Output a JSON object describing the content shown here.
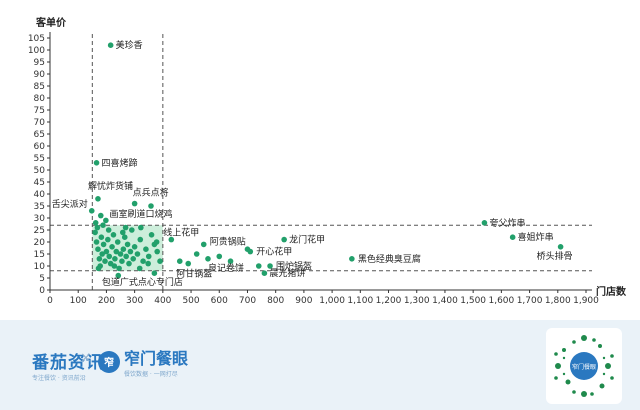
{
  "chart_data": {
    "type": "scatter",
    "xlabel": "门店数",
    "ylabel": "客单价",
    "xlim": [
      0,
      1900
    ],
    "ylim": [
      0,
      105
    ],
    "xticks": [
      0,
      100,
      200,
      300,
      400,
      500,
      600,
      700,
      800,
      900,
      1000,
      1100,
      1200,
      1300,
      1400,
      1500,
      1600,
      1700,
      1800,
      1900
    ],
    "yticks": [
      0,
      5,
      10,
      15,
      20,
      25,
      30,
      35,
      40,
      45,
      50,
      55,
      60,
      65,
      70,
      75,
      80,
      85,
      90,
      95,
      100,
      105
    ],
    "tick_labels_x": [
      "0",
      "100",
      "200",
      "300",
      "400",
      "500",
      "600",
      "700",
      "800",
      "900",
      "1,000",
      "1,100",
      "1,200",
      "1,300",
      "1,400",
      "1,500",
      "1,600",
      "1,700",
      "1,800",
      "1,900"
    ],
    "ref_lines": {
      "vertical": [
        150,
        400
      ],
      "horizontal": [
        27,
        8
      ]
    },
    "highlight_box": {
      "x": [
        150,
        400
      ],
      "y": [
        8,
        27
      ]
    },
    "colors": {
      "point": "#22a06b",
      "box": "#c4ebd5",
      "ref": "#555555"
    },
    "labeled_points": [
      {
        "x": 215,
        "y": 102,
        "label": "美珍香"
      },
      {
        "x": 165,
        "y": 53,
        "label": "四喜烤蹄"
      },
      {
        "x": 170,
        "y": 38,
        "label": "解忧炸货铺"
      },
      {
        "x": 148,
        "y": 33,
        "label": "舌尖派对"
      },
      {
        "x": 300,
        "y": 36,
        "label": "点兵点将"
      },
      {
        "x": 358,
        "y": 35,
        "label": "画室刷道口烧鸡"
      },
      {
        "x": 430,
        "y": 21,
        "label": "线上花甲"
      },
      {
        "x": 545,
        "y": 19,
        "label": "阿贵锅贴"
      },
      {
        "x": 490,
        "y": 11,
        "label": "阿甘锅盔"
      },
      {
        "x": 560,
        "y": 13,
        "label": "良记卷饼"
      },
      {
        "x": 370,
        "y": 7,
        "label": "包道广式点心专门店"
      },
      {
        "x": 710,
        "y": 16,
        "label": "开心花甲"
      },
      {
        "x": 830,
        "y": 21,
        "label": "龙门花甲"
      },
      {
        "x": 780,
        "y": 10,
        "label": "围炉锅盔"
      },
      {
        "x": 760,
        "y": 7,
        "label": "晨光猪饼"
      },
      {
        "x": 1070,
        "y": 13,
        "label": "黑色经典臭豆腐"
      },
      {
        "x": 1540,
        "y": 28,
        "label": "夸父炸串"
      },
      {
        "x": 1640,
        "y": 22,
        "label": "喜姐炸串"
      },
      {
        "x": 1810,
        "y": 18,
        "label": "桥头排骨"
      }
    ],
    "points": [
      {
        "x": 160,
        "y": 24
      },
      {
        "x": 165,
        "y": 20
      },
      {
        "x": 170,
        "y": 17
      },
      {
        "x": 175,
        "y": 13
      },
      {
        "x": 178,
        "y": 10
      },
      {
        "x": 182,
        "y": 22
      },
      {
        "x": 185,
        "y": 15
      },
      {
        "x": 190,
        "y": 19
      },
      {
        "x": 195,
        "y": 12
      },
      {
        "x": 200,
        "y": 16
      },
      {
        "x": 205,
        "y": 21
      },
      {
        "x": 210,
        "y": 14
      },
      {
        "x": 215,
        "y": 11
      },
      {
        "x": 220,
        "y": 18
      },
      {
        "x": 225,
        "y": 23
      },
      {
        "x": 230,
        "y": 13
      },
      {
        "x": 235,
        "y": 16
      },
      {
        "x": 240,
        "y": 20
      },
      {
        "x": 245,
        "y": 9
      },
      {
        "x": 250,
        "y": 15
      },
      {
        "x": 255,
        "y": 12
      },
      {
        "x": 260,
        "y": 17
      },
      {
        "x": 265,
        "y": 22
      },
      {
        "x": 270,
        "y": 14
      },
      {
        "x": 275,
        "y": 19
      },
      {
        "x": 280,
        "y": 11
      },
      {
        "x": 285,
        "y": 16
      },
      {
        "x": 290,
        "y": 25
      },
      {
        "x": 295,
        "y": 13
      },
      {
        "x": 300,
        "y": 18
      },
      {
        "x": 310,
        "y": 15
      },
      {
        "x": 320,
        "y": 21
      },
      {
        "x": 330,
        "y": 12
      },
      {
        "x": 340,
        "y": 17
      },
      {
        "x": 350,
        "y": 14
      },
      {
        "x": 360,
        "y": 23
      },
      {
        "x": 370,
        "y": 19
      },
      {
        "x": 380,
        "y": 16
      },
      {
        "x": 390,
        "y": 12
      },
      {
        "x": 168,
        "y": 26
      },
      {
        "x": 188,
        "y": 27
      },
      {
        "x": 172,
        "y": 9
      },
      {
        "x": 208,
        "y": 25
      },
      {
        "x": 258,
        "y": 24
      },
      {
        "x": 322,
        "y": 26
      },
      {
        "x": 378,
        "y": 20
      },
      {
        "x": 228,
        "y": 10
      },
      {
        "x": 198,
        "y": 29
      },
      {
        "x": 180,
        "y": 31
      },
      {
        "x": 162,
        "y": 28
      },
      {
        "x": 318,
        "y": 9
      },
      {
        "x": 348,
        "y": 11
      },
      {
        "x": 268,
        "y": 26
      },
      {
        "x": 242,
        "y": 6
      },
      {
        "x": 460,
        "y": 12
      },
      {
        "x": 520,
        "y": 15
      },
      {
        "x": 600,
        "y": 14
      },
      {
        "x": 640,
        "y": 12
      },
      {
        "x": 700,
        "y": 17
      },
      {
        "x": 740,
        "y": 10
      }
    ]
  },
  "footer": {
    "logo1_main": "番茄资讯",
    "logo1_sub": "专注餐饮 · 资讯前沿",
    "separator": "×",
    "logo2_badge": "窄",
    "logo2_main": "窄门餐眼",
    "logo2_sub": "餐饮数据 · 一网打尽",
    "qr_center": "窄门餐眼"
  }
}
